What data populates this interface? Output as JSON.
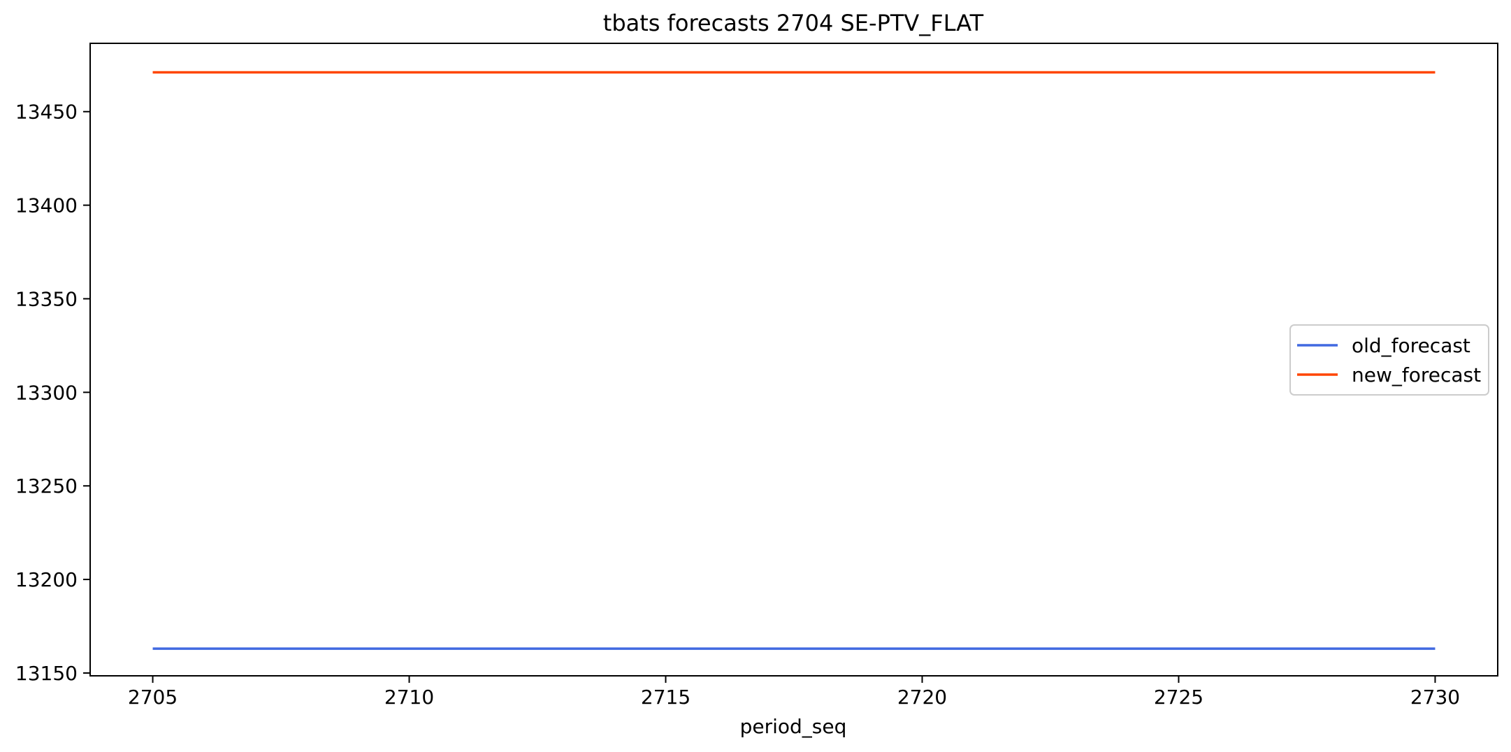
{
  "chart_data": {
    "type": "line",
    "title": "tbats forecasts 2704 SE-PTV_FLAT",
    "xlabel": "period_seq",
    "ylabel": "",
    "xlim": [
      2703.78,
      2731.22
    ],
    "ylim": [
      13148.5,
      13486.5
    ],
    "x_ticks": [
      2705,
      2710,
      2715,
      2720,
      2725,
      2730
    ],
    "y_ticks": [
      13150,
      13200,
      13250,
      13300,
      13350,
      13400,
      13450
    ],
    "grid": false,
    "legend_position": "center right",
    "x": [
      2705,
      2706,
      2707,
      2708,
      2709,
      2710,
      2711,
      2712,
      2713,
      2714,
      2715,
      2716,
      2717,
      2718,
      2719,
      2720,
      2721,
      2722,
      2723,
      2724,
      2725,
      2726,
      2727,
      2728,
      2729,
      2730
    ],
    "series": [
      {
        "name": "old_forecast",
        "color": "#4169e1",
        "values": [
          13163,
          13163,
          13163,
          13163,
          13163,
          13163,
          13163,
          13163,
          13163,
          13163,
          13163,
          13163,
          13163,
          13163,
          13163,
          13163,
          13163,
          13163,
          13163,
          13163,
          13163,
          13163,
          13163,
          13163,
          13163,
          13163
        ]
      },
      {
        "name": "new_forecast",
        "color": "#ff4500",
        "values": [
          13471,
          13471,
          13471,
          13471,
          13471,
          13471,
          13471,
          13471,
          13471,
          13471,
          13471,
          13471,
          13471,
          13471,
          13471,
          13471,
          13471,
          13471,
          13471,
          13471,
          13471,
          13471,
          13471,
          13471,
          13471,
          13471
        ]
      }
    ]
  }
}
